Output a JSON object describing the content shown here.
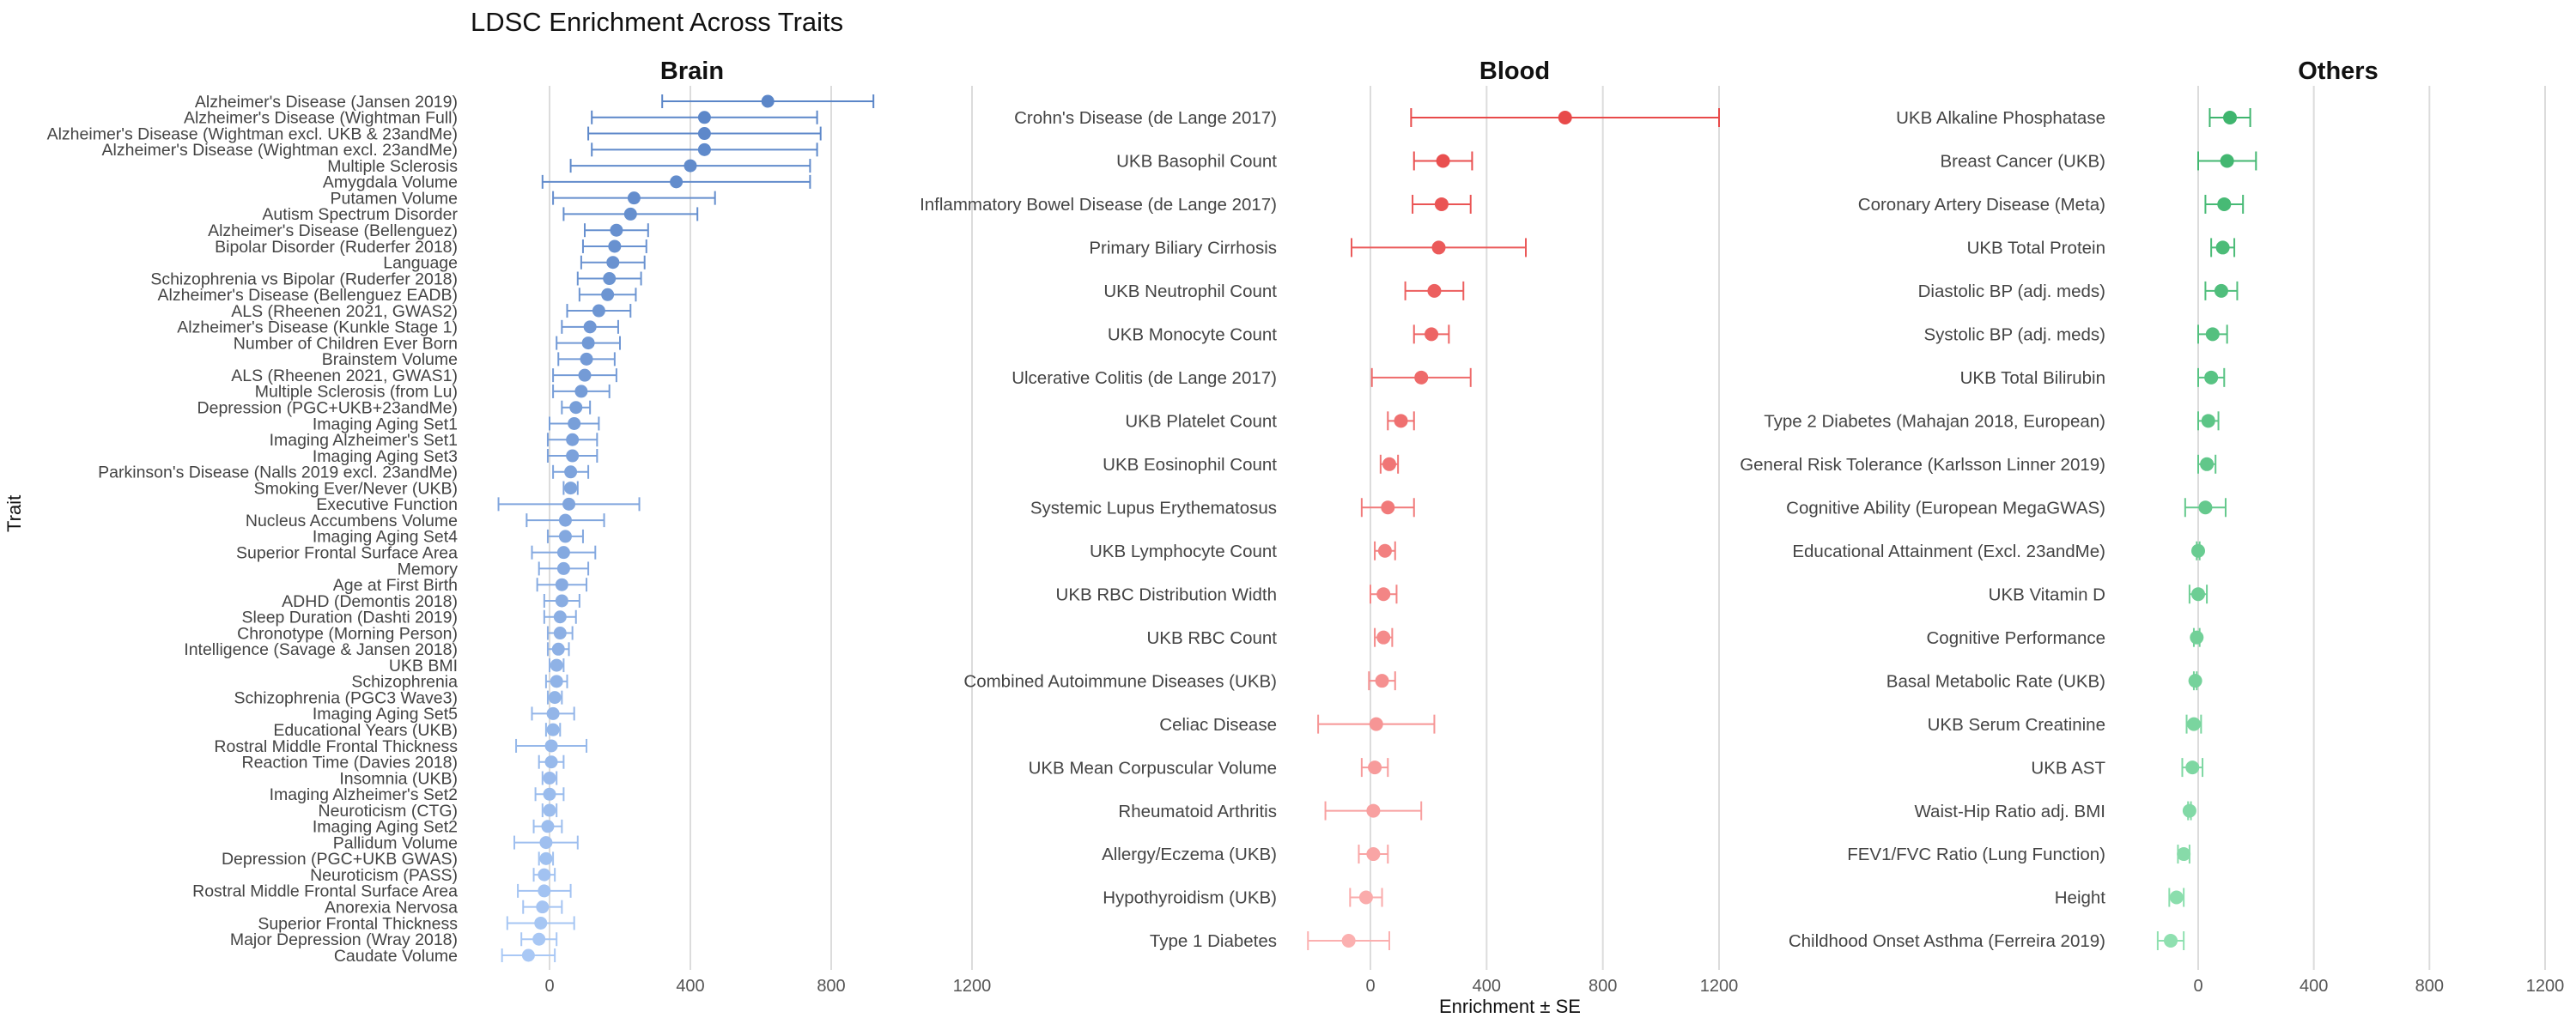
{
  "title": "LDSC Enrichment Across Traits",
  "ylabel": "Trait",
  "xlabel": "Enrichment ± SE",
  "chart_data": [
    {
      "type": "scatter",
      "panel": "Brain",
      "title": "Brain",
      "xlim": [
        -200,
        1200
      ],
      "xticks": [
        0,
        400,
        800,
        1200
      ],
      "grid": true,
      "color": "#5b86c8",
      "traits": [
        "Alzheimer's Disease (Jansen 2019)",
        "Alzheimer's Disease (Wightman Full)",
        "Alzheimer's Disease (Wightman excl. UKB & 23andMe)",
        "Alzheimer's Disease (Wightman excl. 23andMe)",
        "Multiple Sclerosis",
        "Amygdala Volume",
        "Putamen Volume",
        "Autism Spectrum Disorder",
        "Alzheimer's Disease (Bellenguez)",
        "Bipolar Disorder (Ruderfer 2018)",
        "Language",
        "Schizophrenia vs Bipolar (Ruderfer 2018)",
        "Alzheimer's Disease (Bellenguez EADB)",
        "ALS (Rheenen 2021, GWAS2)",
        "Alzheimer's Disease (Kunkle Stage 1)",
        "Number of Children Ever Born",
        "Brainstem Volume",
        "ALS (Rheenen 2021, GWAS1)",
        "Multiple Sclerosis (from Lu)",
        "Depression (PGC+UKB+23andMe)",
        "Imaging Aging Set1",
        "Imaging Alzheimer's Set1",
        "Imaging Aging Set3",
        "Parkinson's Disease (Nalls 2019 excl. 23andMe)",
        "Smoking Ever/Never (UKB)",
        "Executive Function",
        "Nucleus Accumbens Volume",
        "Imaging Aging Set4",
        "Superior Frontal Surface Area",
        "Memory",
        "Age at First Birth",
        "ADHD (Demontis 2018)",
        "Sleep Duration (Dashti 2019)",
        "Chronotype (Morning Person)",
        "Intelligence (Savage & Jansen 2018)",
        "UKB BMI",
        "Schizophrenia",
        "Schizophrenia (PGC3 Wave3)",
        "Imaging Aging Set5",
        "Educational Years (UKB)",
        "Rostral Middle Frontal Thickness",
        "Reaction Time (Davies 2018)",
        "Insomnia (UKB)",
        "Imaging Alzheimer's Set2",
        "Neuroticism (CTG)",
        "Imaging Aging Set2",
        "Pallidum Volume",
        "Depression (PGC+UKB GWAS)",
        "Neuroticism (PASS)",
        "Rostral Middle Frontal Surface Area",
        "Anorexia Nervosa",
        "Superior Frontal Thickness",
        "Major Depression (Wray 2018)",
        "Caudate Volume"
      ],
      "values": [
        620,
        440,
        440,
        440,
        400,
        360,
        240,
        230,
        190,
        185,
        180,
        170,
        165,
        140,
        115,
        110,
        105,
        100,
        90,
        75,
        70,
        65,
        65,
        60,
        60,
        55,
        45,
        45,
        40,
        40,
        35,
        35,
        30,
        30,
        25,
        20,
        20,
        15,
        10,
        10,
        5,
        5,
        0,
        0,
        0,
        -5,
        -10,
        -10,
        -15,
        -15,
        -20,
        -25,
        -30,
        -60
      ],
      "se": [
        300,
        320,
        330,
        320,
        340,
        380,
        230,
        190,
        90,
        90,
        90,
        90,
        80,
        90,
        80,
        90,
        80,
        90,
        80,
        40,
        70,
        70,
        70,
        50,
        20,
        200,
        110,
        50,
        90,
        70,
        70,
        50,
        45,
        35,
        30,
        20,
        30,
        20,
        60,
        20,
        100,
        35,
        20,
        40,
        20,
        40,
        90,
        20,
        30,
        75,
        55,
        95,
        50,
        75
      ]
    },
    {
      "type": "scatter",
      "panel": "Blood",
      "title": "Blood",
      "xlim": [
        -200,
        1200
      ],
      "xticks": [
        0,
        400,
        800,
        1200
      ],
      "grid": true,
      "color": "#e84a4a",
      "traits": [
        "Crohn's Disease (de Lange 2017)",
        "UKB Basophil Count",
        "Inflammatory Bowel Disease (de Lange 2017)",
        "Primary Biliary Cirrhosis",
        "UKB Neutrophil Count",
        "UKB Monocyte Count",
        "Ulcerative Colitis (de Lange 2017)",
        "UKB Platelet Count",
        "UKB Eosinophil Count",
        "Systemic Lupus Erythematosus",
        "UKB Lymphocyte Count",
        "UKB RBC Distribution Width",
        "UKB RBC Count",
        "Combined Autoimmune Diseases (UKB)",
        "Celiac Disease",
        "UKB Mean Corpuscular Volume",
        "Rheumatoid Arthritis",
        "Allergy/Eczema (UKB)",
        "Hypothyroidism (UKB)",
        "Type 1 Diabetes"
      ],
      "values": [
        670,
        250,
        245,
        235,
        220,
        210,
        175,
        105,
        65,
        60,
        50,
        45,
        45,
        40,
        20,
        15,
        10,
        10,
        -15,
        -75
      ],
      "se": [
        530,
        100,
        100,
        300,
        100,
        60,
        170,
        45,
        30,
        90,
        35,
        45,
        30,
        45,
        200,
        45,
        165,
        50,
        55,
        140
      ]
    },
    {
      "type": "scatter",
      "panel": "Others",
      "title": "Others",
      "xlim": [
        -200,
        1200
      ],
      "xticks": [
        0,
        400,
        800,
        1200
      ],
      "grid": true,
      "color": "#3fb56e",
      "traits": [
        "UKB Alkaline Phosphatase",
        "Breast Cancer (UKB)",
        "Coronary Artery Disease (Meta)",
        "UKB Total Protein",
        "Diastolic BP (adj. meds)",
        "Systolic BP (adj. meds)",
        "UKB Total Bilirubin",
        "Type 2 Diabetes (Mahajan 2018, European)",
        "General Risk Tolerance (Karlsson Linner 2019)",
        "Cognitive Ability (European MegaGWAS)",
        "Educational Attainment (Excl. 23andMe)",
        "UKB Vitamin D",
        "Cognitive Performance",
        "Basal Metabolic Rate (UKB)",
        "UKB Serum Creatinine",
        "UKB AST",
        "Waist-Hip Ratio adj. BMI",
        "FEV1/FVC Ratio (Lung Function)",
        "Height",
        "Childhood Onset Asthma (Ferreira 2019)"
      ],
      "values": [
        110,
        100,
        90,
        85,
        80,
        50,
        45,
        35,
        30,
        25,
        0,
        0,
        -5,
        -10,
        -15,
        -20,
        -30,
        -50,
        -75,
        -95
      ],
      "se": [
        70,
        100,
        65,
        40,
        55,
        50,
        45,
        35,
        30,
        70,
        5,
        30,
        10,
        5,
        25,
        35,
        5,
        20,
        25,
        45
      ]
    }
  ]
}
